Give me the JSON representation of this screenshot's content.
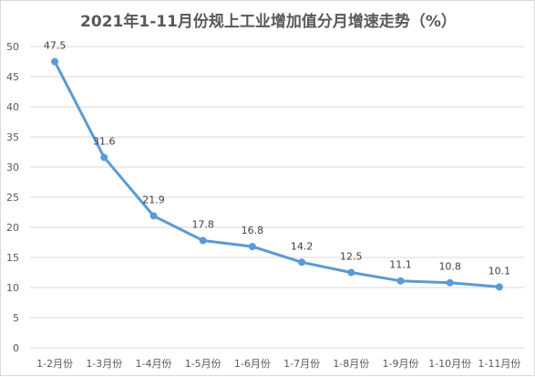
{
  "chart_data": {
    "type": "line",
    "title": "2021年1-11月份规上工业增加值分月增速走势（%）",
    "xlabel": "",
    "ylabel": "",
    "categories": [
      "1-2月份",
      "1-3月份",
      "1-4月份",
      "1-5月份",
      "1-6月份",
      "1-7月份",
      "1-8月份",
      "1-9月份",
      "1-10月份",
      "1-11月份"
    ],
    "values": [
      47.5,
      31.6,
      21.9,
      17.8,
      16.8,
      14.2,
      12.5,
      11.1,
      10.8,
      10.1
    ],
    "data_labels": [
      "47.5",
      "31.6",
      "21.9",
      "17.8",
      "16.8",
      "14.2",
      "12.5",
      "11.1",
      "10.8",
      "10.1"
    ],
    "ylim": [
      0,
      50
    ],
    "yticks": [
      0,
      5,
      10,
      15,
      20,
      25,
      30,
      35,
      40,
      45,
      50
    ],
    "grid": true,
    "legend": "none",
    "colors": {
      "line": "#5b9bd5",
      "grid": "#d9d9d9",
      "text": "#595959"
    }
  }
}
